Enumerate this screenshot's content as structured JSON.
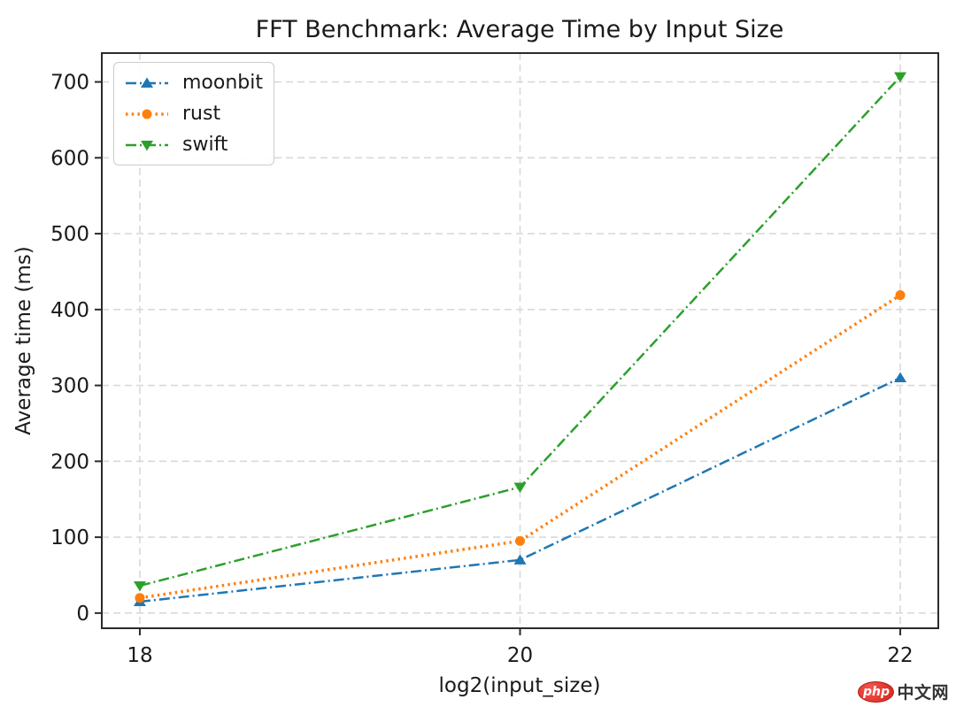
{
  "chart_data": {
    "type": "line",
    "title": "FFT Benchmark: Average Time by Input Size",
    "xlabel": "log2(input_size)",
    "ylabel": "Average time (ms)",
    "x": [
      18,
      20,
      22
    ],
    "xticks": [
      18,
      20,
      22
    ],
    "yticks": [
      0,
      100,
      200,
      300,
      400,
      500,
      600,
      700
    ],
    "xlim": [
      17.8,
      22.2
    ],
    "ylim": [
      -20,
      738
    ],
    "grid": true,
    "grid_style": "dashed",
    "legend_position": "upper-left",
    "series": [
      {
        "name": "moonbit",
        "color": "#1f77b4",
        "linestyle": "dashdot",
        "marker": "triangle-up",
        "linewidth": 2.5,
        "values": [
          15,
          70,
          310
        ]
      },
      {
        "name": "rust",
        "color": "#ff7f0e",
        "linestyle": "dotted",
        "marker": "circle",
        "linewidth": 3.5,
        "values": [
          20,
          95,
          419
        ]
      },
      {
        "name": "swift",
        "color": "#2ca02c",
        "linestyle": "dashdot",
        "marker": "triangle-down",
        "linewidth": 2.5,
        "values": [
          36,
          166,
          707
        ]
      }
    ]
  },
  "colors": {
    "spine": "#2b2b2b",
    "gridline": "#d9d9d9",
    "text": "#1a1a1a",
    "legend_border": "#cccccc"
  },
  "watermark": {
    "badge": "php",
    "text": "中文网",
    "badge_color": "#e02f27"
  }
}
